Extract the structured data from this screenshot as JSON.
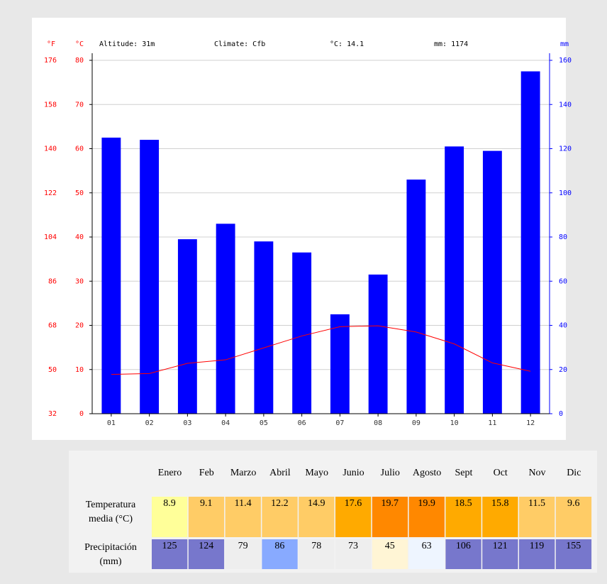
{
  "chart_data": {
    "type": "bar",
    "y3_unit": "°F",
    "y_unit": "°C",
    "y2_unit": "mm",
    "header_texts": [
      "Altitude: 31m",
      "Climate: Cfb",
      "°C: 14.1",
      "mm: 1174"
    ],
    "categories": [
      "01",
      "02",
      "03",
      "04",
      "05",
      "06",
      "07",
      "08",
      "09",
      "10",
      "11",
      "12"
    ],
    "series": [
      {
        "name": "Precipitation",
        "type": "bar",
        "axis": "y2",
        "color": "#0000ff",
        "values": [
          125,
          124,
          79,
          86,
          78,
          73,
          45,
          63,
          106,
          121,
          119,
          155
        ]
      },
      {
        "name": "Temperature",
        "type": "line",
        "color": "#ff0000",
        "values": [
          8.9,
          9.1,
          11.4,
          12.2,
          14.9,
          17.6,
          19.7,
          19.9,
          18.5,
          15.8,
          11.5,
          9.6
        ]
      }
    ],
    "ylim": [
      0,
      80
    ],
    "yticks": [
      0,
      10,
      20,
      30,
      40,
      50,
      60,
      70,
      80
    ],
    "y2lim": [
      0,
      160
    ],
    "y2ticks": [
      0,
      20,
      40,
      60,
      80,
      100,
      120,
      140,
      160
    ],
    "y3lim": [
      32,
      176
    ],
    "y3ticks": [
      32,
      50,
      68,
      86,
      104,
      122,
      140,
      158,
      176
    ],
    "grid": true
  },
  "table": {
    "header": [
      "Enero",
      "Feb",
      "Marzo",
      "Abril",
      "Mayo",
      "Junio",
      "Julio",
      "Agosto",
      "Sept",
      "Oct",
      "Nov",
      "Dic"
    ],
    "rows": [
      {
        "label": [
          "Temperatura",
          "media (°C)"
        ],
        "cells": [
          "8.9",
          "9.1",
          "11.4",
          "12.2",
          "14.9",
          "17.6",
          "19.7",
          "19.9",
          "18.5",
          "15.8",
          "11.5",
          "9.6"
        ],
        "colors": [
          "#ffff99",
          "#ffcc66",
          "#ffcc66",
          "#ffcc66",
          "#ffcc66",
          "#ffaa00",
          "#ff8800",
          "#ff8800",
          "#ffaa00",
          "#ffaa00",
          "#ffcc66",
          "#ffcc66"
        ]
      },
      {
        "label": [
          "Precipitación",
          "(mm)"
        ],
        "cells": [
          "125",
          "124",
          "79",
          "86",
          "78",
          "73",
          "45",
          "63",
          "106",
          "121",
          "119",
          "155"
        ],
        "colors": [
          "#7777cc",
          "#7777cc",
          "#eeeeee",
          "#88aaff",
          "#eeeeee",
          "#eeeeee",
          "#fff5d5",
          "#eef5ff",
          "#7777cc",
          "#7777cc",
          "#7777cc",
          "#7777cc"
        ]
      }
    ]
  }
}
